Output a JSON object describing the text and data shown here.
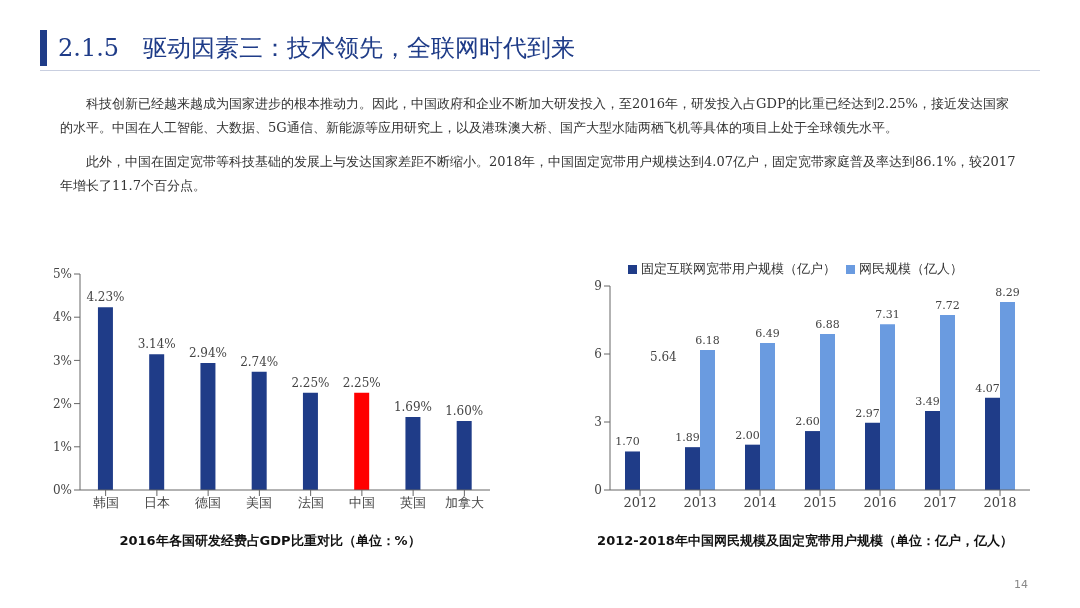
{
  "chart_data": [
    {
      "type": "other",
      "title": "2.1.5　驱动因素三：技术领先，全联网时代到来",
      "annotations": [
        "科技创新已经越来越成为国家进步的根本推动力。因此，中国政府和企业不断加大研发投入，至2016年，研发投入占GDP的比重已经达到2.25%，接近发达国家的水平。中国在人工智能、大数据、5G通信、新能源等应用研究上，以及港珠澳大桥、国产大型水陆两栖飞机等具体的项目上处于全球领先水平。",
        "此外，中国在固定宽带等科技基础的发展上与发达国家差距不断缩小。2018年，中国固定宽带用户规模达到4.07亿户，固定宽带家庭普及率达到86.1%，较2017年增长了11.7个百分点。",
        "14"
      ]
    },
    {
      "type": "bar",
      "title": "2016年各国研发经费占GDP比重对比（单位：%）",
      "categories": [
        "韩国",
        "日本",
        "德国",
        "美国",
        "法国",
        "中国",
        "英国",
        "加拿大"
      ],
      "values": [
        4.23,
        3.14,
        2.94,
        2.74,
        2.25,
        2.25,
        1.69,
        1.6
      ],
      "colors": [
        "#1f3c88",
        "#1f3c88",
        "#1f3c88",
        "#1f3c88",
        "#1f3c88",
        "#ff0000",
        "#1f3c88",
        "#1f3c88"
      ],
      "value_labels": [
        "4.23%",
        "3.14%",
        "2.94%",
        "2.74%",
        "2.25%",
        "2.25%",
        "1.69%",
        "1.60%"
      ],
      "ylim": [
        0,
        5
      ],
      "yticks": [
        {
          "value": 0,
          "label": "0%"
        },
        {
          "value": 1,
          "label": "1%"
        },
        {
          "value": 2,
          "label": "2%"
        },
        {
          "value": 3,
          "label": "3%"
        },
        {
          "value": 4,
          "label": "4%"
        },
        {
          "value": 5,
          "label": "5%"
        }
      ],
      "grid": false,
      "legend": false
    },
    {
      "type": "bar",
      "title": "2012-2018年中国网民规模及固定宽带用户规模（单位：亿户，亿人）",
      "categories": [
        "2012",
        "2013",
        "2014",
        "2015",
        "2016",
        "2017",
        "2018"
      ],
      "series": [
        {
          "name": "固定互联网宽带用户规模（亿户）",
          "color": "#1f3c88",
          "values": [
            1.7,
            1.89,
            2.0,
            2.6,
            2.97,
            3.49,
            4.07
          ],
          "value_labels": [
            "1.70",
            "1.89",
            "2.00",
            "2.60",
            "2.97",
            "3.49",
            "4.07"
          ]
        },
        {
          "name": "网民规模（亿人）",
          "color": "#6a9be0",
          "values": [
            null,
            6.18,
            6.49,
            6.88,
            7.31,
            7.72,
            8.29
          ],
          "value_labels": [
            null,
            "6.18",
            "6.49",
            "6.88",
            "7.31",
            "7.72",
            "8.29"
          ]
        }
      ],
      "annotations": [
        "5.64"
      ],
      "ylim": [
        0,
        9
      ],
      "yticks": [
        0,
        3,
        6,
        9
      ],
      "grid": false,
      "legend": "top"
    }
  ]
}
